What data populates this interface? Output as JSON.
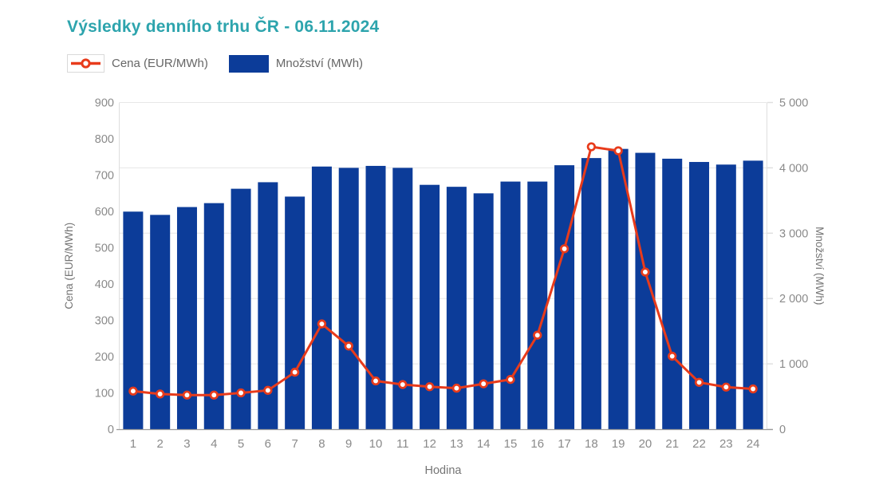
{
  "title": "Výsledky denního trhu ČR - 06.11.2024",
  "legend": {
    "price_label": "Cena (EUR/MWh)",
    "volume_label": "Množství (MWh)"
  },
  "colors": {
    "title": "#2da4ad",
    "bar": "#0c3c99",
    "line": "#e83b1b",
    "marker_fill": "#ffffff",
    "tick_text": "#8a8a8a",
    "axis_title_text": "#757575",
    "legend_text": "#666666",
    "grid_line": "#e7e7e7",
    "axis_baseline": "#9b9b9b",
    "side_axis_line": "#dedede",
    "legend_box_border": "#d9d9d9"
  },
  "chart_data": {
    "type": "bar-line-combo",
    "title": "Výsledky denního trhu ČR - 06.11.2024",
    "categories": [
      1,
      2,
      3,
      4,
      5,
      6,
      7,
      8,
      9,
      10,
      11,
      12,
      13,
      14,
      15,
      16,
      17,
      18,
      19,
      20,
      21,
      22,
      23,
      24
    ],
    "series": [
      {
        "name": "Cena (EUR/MWh)",
        "type": "line",
        "axis": "left",
        "values": [
          105,
          97,
          94,
          94,
          100,
          107,
          157,
          290,
          229,
          133,
          123,
          117,
          113,
          125,
          137,
          259,
          497,
          778,
          767,
          433,
          201,
          129,
          116,
          111
        ]
      },
      {
        "name": "Množství (MWh)",
        "type": "bar",
        "axis": "right",
        "values": [
          3330,
          3280,
          3400,
          3460,
          3680,
          3780,
          3560,
          4020,
          4000,
          4030,
          4000,
          3740,
          3710,
          3610,
          3790,
          3790,
          4040,
          4150,
          4290,
          4230,
          4140,
          4090,
          4050,
          4110
        ]
      }
    ],
    "xlabel": "Hodina",
    "y_left": {
      "label": "Cena (EUR/MWh)",
      "min": 0,
      "max": 900,
      "tick_step": 100
    },
    "y_right": {
      "label": "Množství (MWh)",
      "min": 0,
      "max": 5000,
      "tick_step": 1000,
      "tick_format": "space-thousands"
    },
    "grid": "horizontal-at-right-axis-ticks",
    "legend_position": "top-left"
  }
}
